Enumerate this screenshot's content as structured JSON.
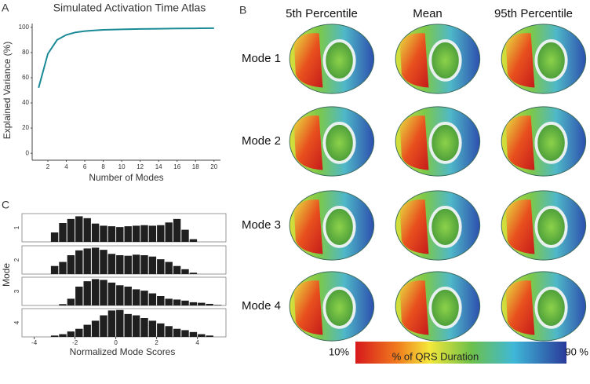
{
  "chart_data": [
    {
      "type": "line",
      "panel_label": "A",
      "title": "Simulated Activation Time Atlas",
      "xlabel": "Number of Modes",
      "ylabel": "Explained Variance (%)",
      "x": [
        1,
        2,
        3,
        4,
        5,
        6,
        7,
        8,
        10,
        12,
        14,
        16,
        18,
        20
      ],
      "values": [
        52,
        79,
        90,
        94,
        96,
        97,
        97.5,
        98,
        98.4,
        98.7,
        98.9,
        99.1,
        99.2,
        99.3
      ],
      "color": "#1a8a96",
      "xlim": [
        0.3,
        20.7
      ],
      "ylim": [
        -3,
        103
      ],
      "xticks": [
        2,
        4,
        6,
        8,
        10,
        12,
        14,
        16,
        18,
        20
      ],
      "yticks": [
        0,
        20,
        40,
        60,
        80,
        100
      ]
    },
    {
      "type": "histogram",
      "panel_label": "C",
      "xlabel": "Normalized Mode Scores",
      "ylabel": "Mode",
      "bins": [
        -3.6,
        -3.2,
        -2.8,
        -2.4,
        -2.0,
        -1.6,
        -1.2,
        -0.8,
        -0.4,
        0,
        0.4,
        0.8,
        1.2,
        1.6,
        2.0,
        2.4,
        2.8,
        3.2,
        3.6,
        4.0,
        4.4,
        4.8,
        5.2
      ],
      "color": "#1f1f1f",
      "xlim": [
        -4.6,
        5.4
      ],
      "ylim": [
        0,
        105
      ],
      "xticks": [
        -4,
        -2,
        0,
        2,
        4
      ],
      "series": [
        {
          "name": "1",
          "values": [
            0,
            35,
            70,
            85,
            95,
            88,
            68,
            60,
            58,
            55,
            58,
            60,
            62,
            60,
            62,
            72,
            85,
            45,
            10,
            0,
            0,
            0
          ]
        },
        {
          "name": "2",
          "values": [
            0,
            30,
            45,
            70,
            88,
            95,
            98,
            90,
            75,
            70,
            68,
            72,
            70,
            65,
            55,
            45,
            30,
            18,
            5,
            0,
            0,
            0
          ]
        },
        {
          "name": "3",
          "values": [
            0,
            0,
            5,
            25,
            70,
            90,
            98,
            95,
            85,
            75,
            70,
            60,
            55,
            45,
            35,
            25,
            22,
            18,
            12,
            10,
            6,
            2
          ]
        },
        {
          "name": "4",
          "values": [
            0,
            5,
            10,
            20,
            30,
            45,
            60,
            80,
            98,
            100,
            85,
            80,
            70,
            60,
            50,
            40,
            30,
            25,
            18,
            10,
            5,
            0
          ]
        }
      ]
    }
  ],
  "atlas": {
    "panel_label": "B",
    "columns": [
      "5th Percentile",
      "Mean",
      "95th Percentile"
    ],
    "rows": [
      "Mode 1",
      "Mode 2",
      "Mode 3",
      "Mode 4"
    ],
    "colorbar": {
      "title": "% of QRS Duration",
      "min_label": "10%",
      "max_label": "90 %"
    }
  }
}
